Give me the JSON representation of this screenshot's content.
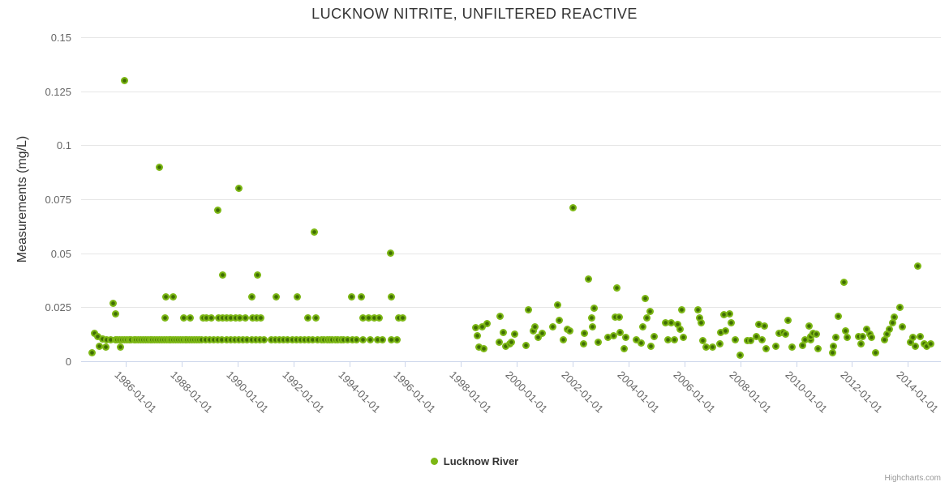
{
  "chart_data": {
    "type": "scatter",
    "title": "LUCKNOW NITRITE, UNFILTERED REACTIVE",
    "ylabel": "Measurements (mg/L)",
    "xlabel": "",
    "grid": "horizontal",
    "legend_position": "bottom-center",
    "xlim": [
      1984.4,
      2015.18
    ],
    "ylim": [
      0,
      0.15
    ],
    "y_ticks": [
      0,
      0.025,
      0.05,
      0.075,
      0.1,
      0.125,
      0.15
    ],
    "y_tick_labels": [
      "0",
      "0.025",
      "0.05",
      "0.075",
      "0.1",
      "0.125",
      "0.15"
    ],
    "x_tick_years": [
      1986,
      1988,
      1990,
      1992,
      1994,
      1996,
      1998,
      2000,
      2002,
      2004,
      2006,
      2008,
      2010,
      2012,
      2014
    ],
    "x_tick_labels": [
      "1986-01-01",
      "1988-01-01",
      "1990-01-01",
      "1992-01-01",
      "1994-01-01",
      "1996-01-01",
      "1998-01-01",
      "2000-01-01",
      "2002-01-01",
      "2004-01-01",
      "2006-01-01",
      "2008-01-01",
      "2010-01-01",
      "2012-01-01",
      "2014-01-01"
    ],
    "series": [
      {
        "name": "Lucknow River",
        "color": "#7cb714",
        "points": [
          [
            1984.79,
            0.004
          ],
          [
            1984.87,
            0.013
          ],
          [
            1984.99,
            0.0115
          ],
          [
            1985.05,
            0.007
          ],
          [
            1985.16,
            0.0105
          ],
          [
            1985.28,
            0.0065
          ],
          [
            1985.32,
            0.01
          ],
          [
            1985.47,
            0.01
          ],
          [
            1985.55,
            0.027
          ],
          [
            1985.63,
            0.022
          ],
          [
            1985.81,
            0.0065
          ],
          [
            1985.96,
            0.13
          ],
          [
            1987.21,
            0.09
          ],
          [
            1989.3,
            0.07
          ],
          [
            1990.04,
            0.08
          ],
          [
            1989.48,
            0.04
          ],
          [
            1990.72,
            0.04
          ],
          [
            1992.75,
            0.06
          ],
          [
            1995.47,
            0.05
          ],
          [
            1987.44,
            0.03
          ],
          [
            1987.71,
            0.03
          ],
          [
            1990.5,
            0.03
          ],
          [
            1991.39,
            0.03
          ],
          [
            1992.13,
            0.03
          ],
          [
            1994.07,
            0.03
          ],
          [
            1994.42,
            0.03
          ],
          [
            1995.52,
            0.03
          ],
          [
            1987.4,
            0.02
          ],
          [
            1988.08,
            0.02
          ],
          [
            1988.32,
            0.02
          ],
          [
            1988.76,
            0.02
          ],
          [
            1988.9,
            0.02
          ],
          [
            1989.05,
            0.02
          ],
          [
            1989.31,
            0.02
          ],
          [
            1989.46,
            0.02
          ],
          [
            1989.62,
            0.02
          ],
          [
            1989.77,
            0.02
          ],
          [
            1989.92,
            0.02
          ],
          [
            1990.07,
            0.02
          ],
          [
            1990.29,
            0.02
          ],
          [
            1990.55,
            0.02
          ],
          [
            1990.69,
            0.02
          ],
          [
            1990.84,
            0.02
          ],
          [
            1992.51,
            0.02
          ],
          [
            1992.8,
            0.02
          ],
          [
            1994.5,
            0.02
          ],
          [
            1994.68,
            0.02
          ],
          [
            1994.91,
            0.02
          ],
          [
            1995.07,
            0.02
          ],
          [
            1995.78,
            0.02
          ],
          [
            1995.92,
            0.02
          ],
          [
            1985.62,
            0.01
          ],
          [
            1985.7,
            0.01
          ],
          [
            1985.79,
            0.01
          ],
          [
            1985.87,
            0.01
          ],
          [
            1985.95,
            0.01
          ],
          [
            1986.04,
            0.01
          ],
          [
            1986.12,
            0.01
          ],
          [
            1986.2,
            0.01
          ],
          [
            1986.29,
            0.01
          ],
          [
            1986.37,
            0.01
          ],
          [
            1986.45,
            0.01
          ],
          [
            1986.54,
            0.01
          ],
          [
            1986.62,
            0.01
          ],
          [
            1986.7,
            0.01
          ],
          [
            1986.79,
            0.01
          ],
          [
            1986.87,
            0.01
          ],
          [
            1986.95,
            0.01
          ],
          [
            1987.04,
            0.01
          ],
          [
            1987.12,
            0.01
          ],
          [
            1987.2,
            0.01
          ],
          [
            1987.29,
            0.01
          ],
          [
            1987.37,
            0.01
          ],
          [
            1987.45,
            0.01
          ],
          [
            1987.54,
            0.01
          ],
          [
            1987.62,
            0.01
          ],
          [
            1987.7,
            0.01
          ],
          [
            1987.79,
            0.01
          ],
          [
            1987.87,
            0.01
          ],
          [
            1987.95,
            0.01
          ],
          [
            1988.04,
            0.01
          ],
          [
            1988.12,
            0.01
          ],
          [
            1988.2,
            0.01
          ],
          [
            1988.29,
            0.01
          ],
          [
            1988.37,
            0.01
          ],
          [
            1988.45,
            0.01
          ],
          [
            1988.54,
            0.01
          ],
          [
            1988.62,
            0.01
          ],
          [
            1988.7,
            0.01
          ],
          [
            1988.85,
            0.01
          ],
          [
            1989.0,
            0.01
          ],
          [
            1989.15,
            0.01
          ],
          [
            1989.3,
            0.01
          ],
          [
            1989.45,
            0.01
          ],
          [
            1989.6,
            0.01
          ],
          [
            1989.75,
            0.01
          ],
          [
            1989.9,
            0.01
          ],
          [
            1990.05,
            0.01
          ],
          [
            1990.2,
            0.01
          ],
          [
            1990.35,
            0.01
          ],
          [
            1990.5,
            0.01
          ],
          [
            1990.65,
            0.01
          ],
          [
            1990.8,
            0.01
          ],
          [
            1990.95,
            0.01
          ],
          [
            1991.2,
            0.01
          ],
          [
            1991.35,
            0.01
          ],
          [
            1991.5,
            0.01
          ],
          [
            1991.65,
            0.01
          ],
          [
            1991.8,
            0.01
          ],
          [
            1991.95,
            0.01
          ],
          [
            1992.1,
            0.01
          ],
          [
            1992.25,
            0.01
          ],
          [
            1992.4,
            0.01
          ],
          [
            1992.55,
            0.01
          ],
          [
            1992.7,
            0.01
          ],
          [
            1992.85,
            0.01
          ],
          [
            1993.0,
            0.01
          ],
          [
            1993.1,
            0.01
          ],
          [
            1993.2,
            0.01
          ],
          [
            1993.3,
            0.01
          ],
          [
            1993.4,
            0.01
          ],
          [
            1993.5,
            0.01
          ],
          [
            1993.6,
            0.01
          ],
          [
            1993.7,
            0.01
          ],
          [
            1993.8,
            0.01
          ],
          [
            1993.95,
            0.01
          ],
          [
            1994.1,
            0.01
          ],
          [
            1994.25,
            0.01
          ],
          [
            1994.5,
            0.01
          ],
          [
            1994.75,
            0.01
          ],
          [
            1995.0,
            0.01
          ],
          [
            1995.2,
            0.01
          ],
          [
            1995.52,
            0.01
          ],
          [
            1995.71,
            0.01
          ],
          [
            1998.53,
            0.0155
          ],
          [
            1998.58,
            0.012
          ],
          [
            1998.63,
            0.0065
          ],
          [
            1998.75,
            0.016
          ],
          [
            1998.82,
            0.006
          ],
          [
            1998.92,
            0.0175
          ],
          [
            1999.36,
            0.009
          ],
          [
            1999.41,
            0.021
          ],
          [
            1999.52,
            0.0135
          ],
          [
            1999.6,
            0.007
          ],
          [
            1999.74,
            0.008
          ],
          [
            1999.79,
            0.009
          ],
          [
            1999.91,
            0.0125
          ],
          [
            2000.32,
            0.0075
          ],
          [
            2000.42,
            0.024
          ],
          [
            2000.58,
            0.014
          ],
          [
            2000.66,
            0.016
          ],
          [
            2000.76,
            0.011
          ],
          [
            2000.9,
            0.013
          ],
          [
            2001.29,
            0.016
          ],
          [
            2001.45,
            0.026
          ],
          [
            2001.51,
            0.019
          ],
          [
            2001.65,
            0.01
          ],
          [
            2001.82,
            0.015
          ],
          [
            2001.9,
            0.014
          ],
          [
            2002.0,
            0.071
          ],
          [
            2002.38,
            0.008
          ],
          [
            2002.42,
            0.013
          ],
          [
            2002.55,
            0.038
          ],
          [
            2002.67,
            0.02
          ],
          [
            2002.7,
            0.016
          ],
          [
            2002.77,
            0.0245
          ],
          [
            2002.91,
            0.009
          ],
          [
            2003.27,
            0.011
          ],
          [
            2003.45,
            0.012
          ],
          [
            2003.52,
            0.0205
          ],
          [
            2003.57,
            0.034
          ],
          [
            2003.68,
            0.0205
          ],
          [
            2003.71,
            0.0135
          ],
          [
            2003.84,
            0.006
          ],
          [
            2003.91,
            0.011
          ],
          [
            2004.29,
            0.01
          ],
          [
            2004.46,
            0.0085
          ],
          [
            2004.51,
            0.016
          ],
          [
            2004.61,
            0.029
          ],
          [
            2004.65,
            0.02
          ],
          [
            2004.76,
            0.023
          ],
          [
            2004.81,
            0.007
          ],
          [
            2004.92,
            0.0115
          ],
          [
            2005.33,
            0.018
          ],
          [
            2005.42,
            0.01
          ],
          [
            2005.52,
            0.018
          ],
          [
            2005.65,
            0.01
          ],
          [
            2005.77,
            0.017
          ],
          [
            2005.84,
            0.015
          ],
          [
            2005.91,
            0.024
          ],
          [
            2005.97,
            0.011
          ],
          [
            2006.47,
            0.024
          ],
          [
            2006.55,
            0.02
          ],
          [
            2006.59,
            0.018
          ],
          [
            2006.66,
            0.0095
          ],
          [
            2006.78,
            0.0065
          ],
          [
            2007.0,
            0.0065
          ],
          [
            2007.26,
            0.008
          ],
          [
            2007.29,
            0.0135
          ],
          [
            2007.42,
            0.0215
          ],
          [
            2007.46,
            0.014
          ],
          [
            2007.63,
            0.022
          ],
          [
            2007.68,
            0.018
          ],
          [
            2007.81,
            0.01
          ],
          [
            2008.0,
            0.003
          ],
          [
            2008.26,
            0.0095
          ],
          [
            2008.36,
            0.0095
          ],
          [
            2008.58,
            0.0115
          ],
          [
            2008.65,
            0.017
          ],
          [
            2008.79,
            0.01
          ],
          [
            2008.87,
            0.0165
          ],
          [
            2008.91,
            0.006
          ],
          [
            2009.26,
            0.007
          ],
          [
            2009.39,
            0.013
          ],
          [
            2009.52,
            0.0135
          ],
          [
            2009.61,
            0.0125
          ],
          [
            2009.71,
            0.019
          ],
          [
            2009.84,
            0.0065
          ],
          [
            2010.24,
            0.0075
          ],
          [
            2010.32,
            0.01
          ],
          [
            2010.45,
            0.0165
          ],
          [
            2010.51,
            0.01
          ],
          [
            2010.53,
            0.0115
          ],
          [
            2010.61,
            0.013
          ],
          [
            2010.72,
            0.0125
          ],
          [
            2010.77,
            0.006
          ],
          [
            2011.29,
            0.004
          ],
          [
            2011.32,
            0.007
          ],
          [
            2011.42,
            0.011
          ],
          [
            2011.52,
            0.021
          ],
          [
            2011.7,
            0.0365
          ],
          [
            2011.77,
            0.014
          ],
          [
            2011.84,
            0.011
          ],
          [
            2012.23,
            0.0115
          ],
          [
            2012.32,
            0.008
          ],
          [
            2012.39,
            0.0115
          ],
          [
            2012.52,
            0.015
          ],
          [
            2012.64,
            0.0125
          ],
          [
            2012.71,
            0.011
          ],
          [
            2012.85,
            0.004
          ],
          [
            2013.16,
            0.01
          ],
          [
            2013.26,
            0.0125
          ],
          [
            2013.35,
            0.015
          ],
          [
            2013.44,
            0.018
          ],
          [
            2013.52,
            0.0205
          ],
          [
            2013.71,
            0.025
          ],
          [
            2013.81,
            0.016
          ],
          [
            2014.1,
            0.009
          ],
          [
            2014.19,
            0.011
          ],
          [
            2014.26,
            0.007
          ],
          [
            2014.36,
            0.044
          ],
          [
            2014.43,
            0.0115
          ],
          [
            2014.58,
            0.008
          ],
          [
            2014.68,
            0.007
          ],
          [
            2014.81,
            0.008
          ]
        ]
      }
    ]
  },
  "legend": {
    "label": "Lucknow River"
  },
  "credits": {
    "label": "Highcharts.com"
  },
  "colors": {
    "point_outer": "#7cb714",
    "point_core": "#3f6c04",
    "grid": "#e6e6e6",
    "axis_line": "#ccd6eb",
    "label": "#666666",
    "title": "#333333",
    "credits": "#999999"
  }
}
